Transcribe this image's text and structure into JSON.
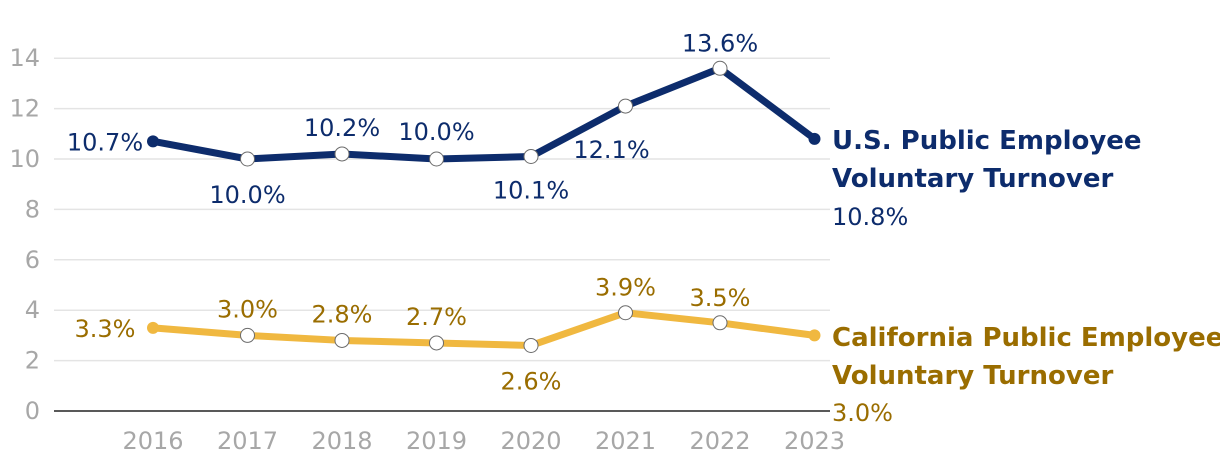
{
  "chart_data": {
    "type": "line",
    "title": "",
    "xlabel": "",
    "ylabel": "",
    "categories": [
      "2016",
      "2017",
      "2018",
      "2019",
      "2020",
      "2021",
      "2022",
      "2023"
    ],
    "ylim": [
      0,
      14
    ],
    "yticks": [
      "0",
      "2",
      "4",
      "6",
      "8",
      "10",
      "12",
      "14"
    ],
    "grid": true,
    "series": [
      {
        "key": "us",
        "name_line1": "U.S. Public Employee",
        "name_line2": "Voluntary Turnover",
        "color": "#0d2c6c",
        "values": [
          10.7,
          10.0,
          10.2,
          10.0,
          10.1,
          12.1,
          13.6,
          10.8
        ],
        "labels": [
          "10.7%",
          "10.0%",
          "10.2%",
          "10.0%",
          "10.1%",
          "12.1%",
          "13.6%",
          "10.8%"
        ]
      },
      {
        "key": "ca",
        "name_line1": "California Public Employee",
        "name_line2": "Voluntary Turnover",
        "color": "#f0b840",
        "label_color": "#9a6d00",
        "values": [
          3.3,
          3.0,
          2.8,
          2.7,
          2.6,
          3.9,
          3.5,
          3.0
        ],
        "labels": [
          "3.3%",
          "3.0%",
          "2.8%",
          "2.7%",
          "2.6%",
          "3.9%",
          "3.5%",
          "3.0%"
        ]
      }
    ]
  }
}
